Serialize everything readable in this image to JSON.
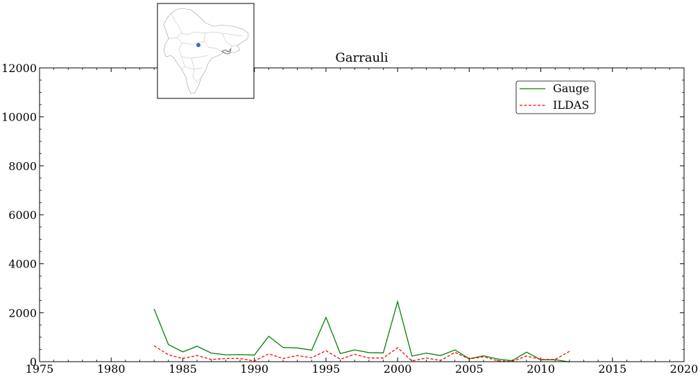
{
  "chart_data": {
    "type": "line",
    "title": "Garrauli",
    "xlabel": "",
    "ylabel": "",
    "xlim": [
      1975,
      2020
    ],
    "ylim": [
      0,
      12000
    ],
    "x_ticks": [
      1975,
      1980,
      1985,
      1990,
      1995,
      2000,
      2005,
      2010,
      2015,
      2020
    ],
    "y_ticks": [
      0,
      2000,
      4000,
      6000,
      8000,
      10000,
      12000
    ],
    "grid": false,
    "legend_position": "top-right",
    "series": [
      {
        "name": "Gauge",
        "color": "#008000",
        "style": "solid",
        "x": [
          1983,
          1984,
          1985,
          1986,
          1987,
          1988,
          1989,
          1990,
          1991,
          1992,
          1993,
          1994,
          1995,
          1996,
          1997,
          1998,
          1999,
          2000,
          2001,
          2002,
          2003,
          2004,
          2005,
          2006,
          2007,
          2008,
          2009,
          2010,
          2011,
          2012
        ],
        "values": [
          2150,
          700,
          400,
          630,
          350,
          280,
          290,
          270,
          1040,
          580,
          560,
          470,
          1810,
          330,
          480,
          370,
          360,
          2450,
          230,
          350,
          250,
          480,
          120,
          240,
          110,
          40,
          390,
          80,
          80,
          -10
        ]
      },
      {
        "name": "ILDAS",
        "color": "#ff0000",
        "style": "dashed",
        "x": [
          1983,
          1984,
          1985,
          1986,
          1987,
          1988,
          1989,
          1990,
          1991,
          1992,
          1993,
          1994,
          1995,
          1996,
          1997,
          1998,
          1999,
          2000,
          2001,
          2002,
          2003,
          2004,
          2005,
          2006,
          2007,
          2008,
          2009,
          2010,
          2011,
          2012
        ],
        "values": [
          650,
          280,
          130,
          250,
          90,
          130,
          130,
          30,
          320,
          130,
          250,
          160,
          450,
          100,
          300,
          150,
          150,
          570,
          30,
          150,
          50,
          380,
          110,
          200,
          40,
          10,
          230,
          90,
          90,
          420
        ]
      }
    ]
  },
  "inset_map": {
    "region": "South Asia",
    "marker_color": "#3a6ea5"
  }
}
